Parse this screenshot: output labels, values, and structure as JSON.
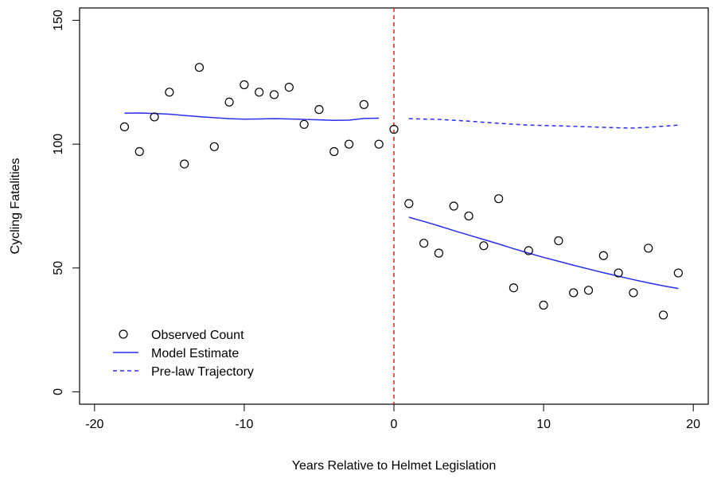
{
  "chart_data": {
    "type": "scatter",
    "title": "",
    "xlabel": "Years Relative to Helmet Legislation",
    "ylabel": "Cycling Fatalities",
    "xlim": [
      -21,
      21
    ],
    "ylim": [
      -5,
      155
    ],
    "xticks": [
      -20,
      -10,
      0,
      10,
      20
    ],
    "yticks": [
      0,
      50,
      100,
      150
    ],
    "xtick_labels": [
      "-20",
      "-10",
      "0",
      "10",
      "20"
    ],
    "ytick_labels": [
      "0",
      "50",
      "100",
      "150"
    ],
    "grid": false,
    "legend_position": "bottom-left",
    "vline": {
      "x": 0,
      "color": "#e8221c",
      "style": "dashed"
    },
    "colors": {
      "points": "#000000",
      "model": "#2a2cf0",
      "vline": "#e8221c"
    },
    "series": [
      {
        "name": "Observed Count",
        "kind": "points",
        "x": [
          -18,
          -17,
          -16,
          -15,
          -14,
          -13,
          -12,
          -11,
          -10,
          -9,
          -8,
          -7,
          -6,
          -5,
          -4,
          -3,
          -2,
          -1,
          0,
          1,
          2,
          3,
          4,
          5,
          6,
          7,
          8,
          9,
          10,
          11,
          12,
          13,
          14,
          15,
          16,
          17,
          18,
          19
        ],
        "y": [
          107,
          97,
          111,
          121,
          92,
          131,
          99,
          117,
          124,
          121,
          120,
          123,
          108,
          114,
          97,
          100,
          116,
          100,
          106,
          76,
          60,
          56,
          75,
          71,
          59,
          78,
          42,
          57,
          35,
          61,
          40,
          41,
          55,
          48,
          40,
          58,
          31,
          48
        ]
      },
      {
        "name": "Model Estimate",
        "kind": "line",
        "segments": [
          {
            "x": [
              -18,
              -17,
              -16,
              -15,
              -14,
              -13,
              -12,
              -11,
              -10,
              -9,
              -8,
              -7,
              -6,
              -5,
              -4,
              -3,
              -2,
              -1
            ],
            "y": [
              112.5,
              112.6,
              112.4,
              112.1,
              111.6,
              111.1,
              110.7,
              110.3,
              110.1,
              110.2,
              110.3,
              110.2,
              110,
              109.8,
              109.6,
              109.7,
              110.4,
              110.5
            ]
          },
          {
            "x": [
              1,
              2,
              3,
              4,
              5,
              6,
              7,
              8,
              9,
              10,
              11,
              12,
              13,
              14,
              15,
              16,
              17,
              18,
              19
            ],
            "y": [
              70.5,
              68.8,
              67,
              65.1,
              63.3,
              61.5,
              59.7,
              57.8,
              56,
              54.3,
              52.7,
              51.1,
              49.6,
              48.1,
              46.7,
              45.3,
              44,
              42.8,
              41.7
            ]
          }
        ]
      },
      {
        "name": "Pre-law Trajectory",
        "kind": "dashed-line",
        "x": [
          1,
          3,
          5,
          7,
          9,
          11,
          13,
          15,
          16,
          17,
          19
        ],
        "y": [
          110.3,
          110,
          109.3,
          108.4,
          107.7,
          107.4,
          107,
          106.6,
          106.5,
          106.8,
          107.7
        ]
      }
    ]
  }
}
